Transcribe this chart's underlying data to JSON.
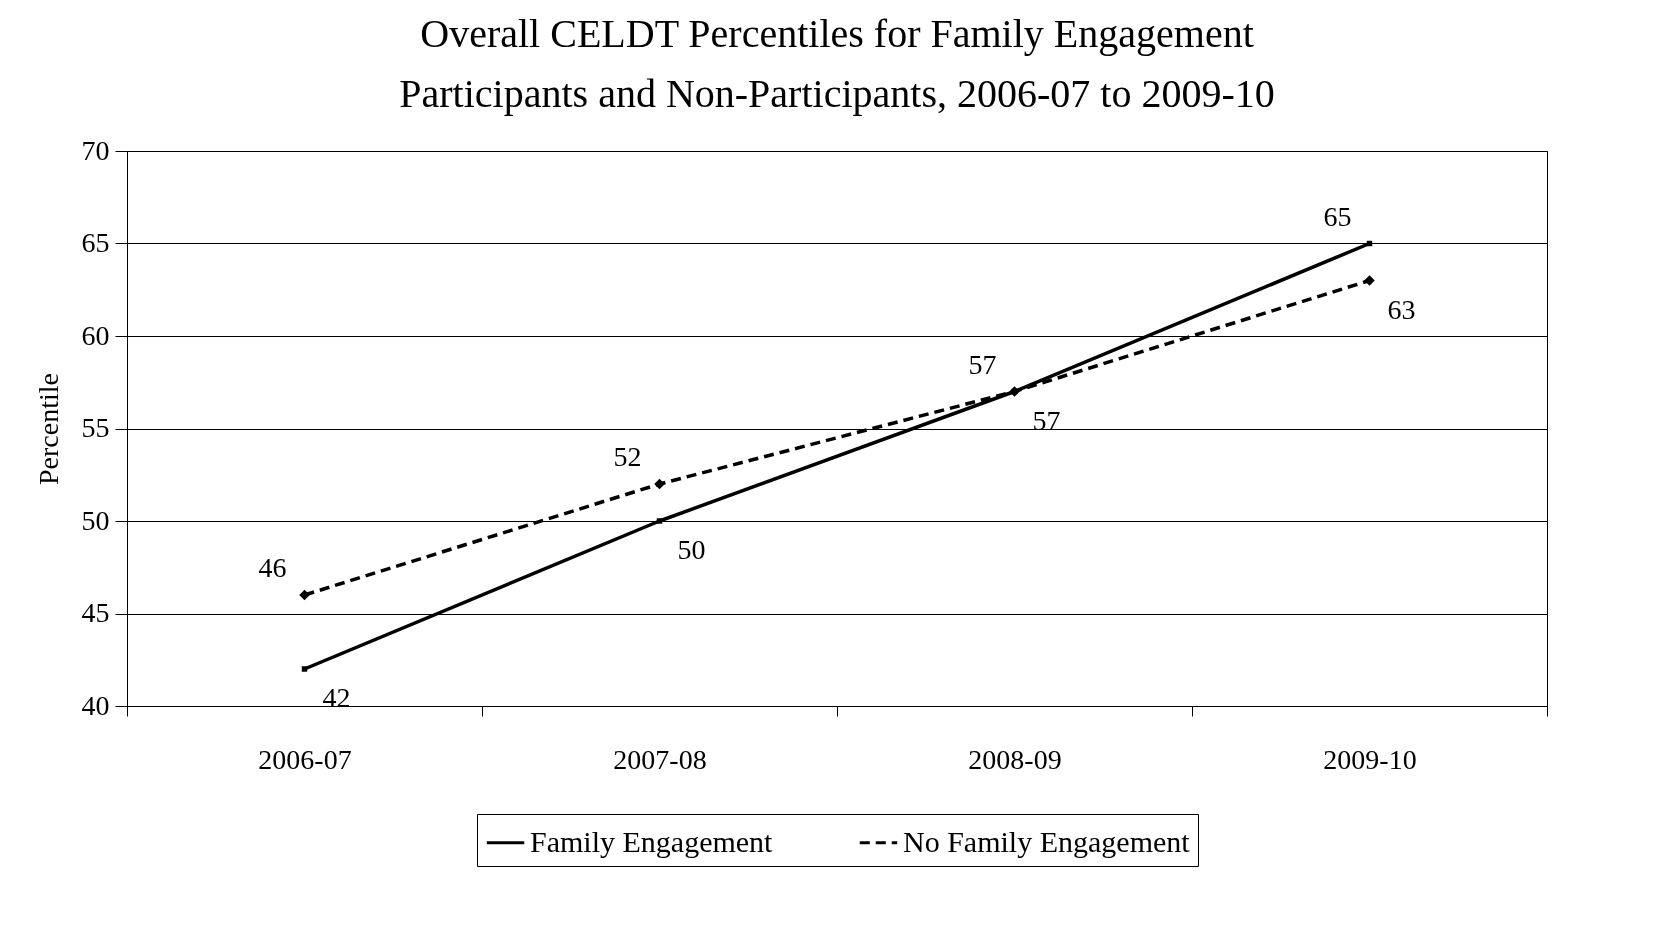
{
  "chart_data": {
    "type": "line",
    "title": "Overall CELDT Percentiles for Family Engagement Participants and Non-Participants, 2006-07 to 2009-10",
    "ylabel": "Percentile",
    "categories": [
      "2006-07",
      "2007-08",
      "2008-09",
      "2009-10"
    ],
    "series": [
      {
        "name": "Family Engagement",
        "color": "#000000",
        "values": [
          42,
          50,
          57,
          65
        ],
        "marker": "square",
        "line_style": "solid"
      },
      {
        "name": "No Family Engagement",
        "color": "#000000",
        "values": [
          46,
          52,
          57,
          63
        ],
        "marker": "diamond",
        "line_style": "dashed"
      }
    ],
    "ylim": [
      40,
      70
    ],
    "yticks": [
      40,
      45,
      50,
      55,
      60,
      65,
      70
    ],
    "grid": "y",
    "legend": "bottom",
    "data_labels": true
  }
}
